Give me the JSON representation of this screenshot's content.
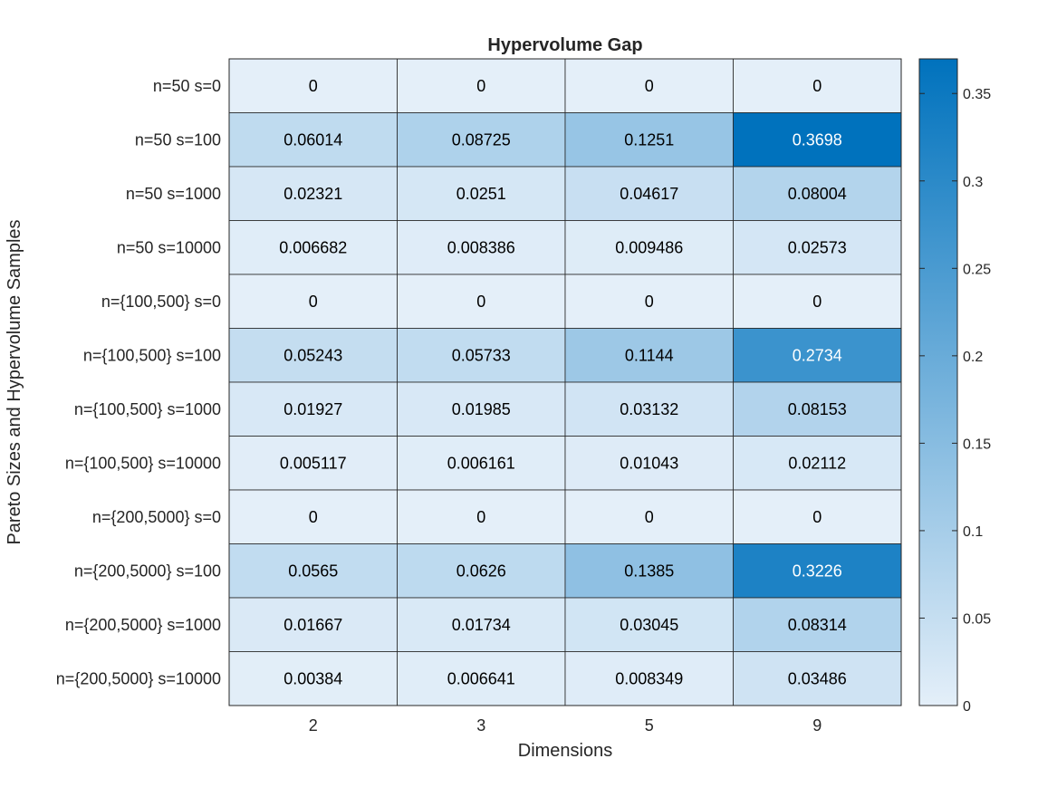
{
  "chart_data": {
    "type": "heatmap",
    "title": "Hypervolume Gap",
    "xlabel": "Dimensions",
    "ylabel": "Pareto Sizes and Hypervolume Samples",
    "x_categories": [
      "2",
      "3",
      "5",
      "9"
    ],
    "y_categories": [
      "n=50 s=0",
      "n=50 s=100",
      "n=50 s=1000",
      "n=50 s=10000",
      "n={100,500} s=0",
      "n={100,500} s=100",
      "n={100,500} s=1000",
      "n={100,500} s=10000",
      "n={200,5000} s=0",
      "n={200,5000} s=100",
      "n={200,5000} s=1000",
      "n={200,5000} s=10000"
    ],
    "values": [
      [
        0,
        0,
        0,
        0
      ],
      [
        0.06014,
        0.08725,
        0.1251,
        0.3698
      ],
      [
        0.02321,
        0.0251,
        0.04617,
        0.08004
      ],
      [
        0.006682,
        0.008386,
        0.009486,
        0.02573
      ],
      [
        0,
        0,
        0,
        0
      ],
      [
        0.05243,
        0.05733,
        0.1144,
        0.2734
      ],
      [
        0.01927,
        0.01985,
        0.03132,
        0.08153
      ],
      [
        0.005117,
        0.006161,
        0.01043,
        0.02112
      ],
      [
        0,
        0,
        0,
        0
      ],
      [
        0.0565,
        0.0626,
        0.1385,
        0.3226
      ],
      [
        0.01667,
        0.01734,
        0.03045,
        0.08314
      ],
      [
        0.00384,
        0.006641,
        0.008349,
        0.03486
      ]
    ],
    "value_labels": [
      [
        "0",
        "0",
        "0",
        "0"
      ],
      [
        "0.06014",
        "0.08725",
        "0.1251",
        "0.3698"
      ],
      [
        "0.02321",
        "0.0251",
        "0.04617",
        "0.08004"
      ],
      [
        "0.006682",
        "0.008386",
        "0.009486",
        "0.02573"
      ],
      [
        "0",
        "0",
        "0",
        "0"
      ],
      [
        "0.05243",
        "0.05733",
        "0.1144",
        "0.2734"
      ],
      [
        "0.01927",
        "0.01985",
        "0.03132",
        "0.08153"
      ],
      [
        "0.005117",
        "0.006161",
        "0.01043",
        "0.02112"
      ],
      [
        "0",
        "0",
        "0",
        "0"
      ],
      [
        "0.0565",
        "0.0626",
        "0.1385",
        "0.3226"
      ],
      [
        "0.01667",
        "0.01734",
        "0.03045",
        "0.08314"
      ],
      [
        "0.00384",
        "0.006641",
        "0.008349",
        "0.03486"
      ]
    ],
    "colorbar": {
      "range": [
        0,
        0.3698
      ],
      "ticks": [
        0,
        0.05,
        0.1,
        0.15,
        0.2,
        0.25,
        0.3,
        0.35
      ],
      "tick_labels": [
        "0",
        "0.05",
        "0.1",
        "0.15",
        "0.2",
        "0.25",
        "0.3",
        "0.35"
      ],
      "color_low": "#e4eff9",
      "color_high": "#0072bd"
    },
    "grid": true,
    "legend": "colorbar-right",
    "cell_text_color_dark": "#000000",
    "cell_text_color_light": "#ffffff"
  }
}
